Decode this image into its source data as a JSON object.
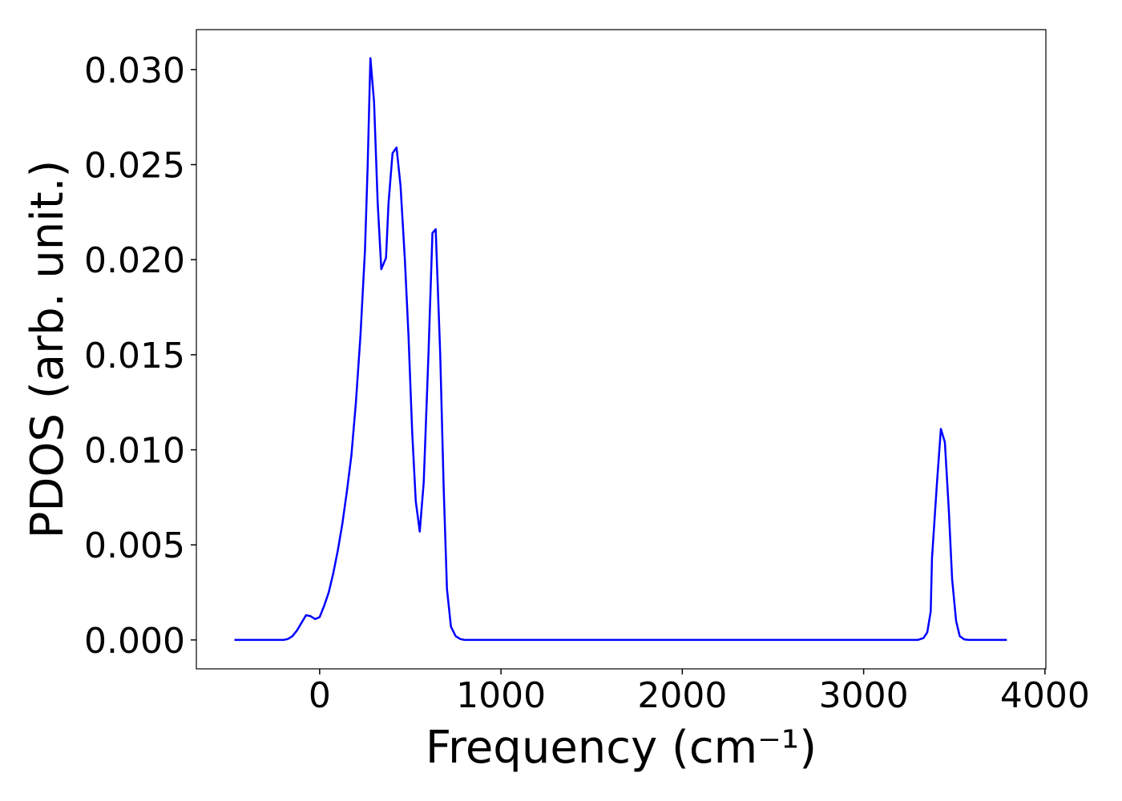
{
  "chart_data": {
    "type": "line",
    "xlabel": "Frequency (cm⁻¹)",
    "ylabel": "PDOS (arb. unit.)",
    "xlim": [
      -680,
      4005
    ],
    "ylim": [
      -0.00152,
      0.0321
    ],
    "xticks": [
      0,
      1000,
      2000,
      3000,
      4000
    ],
    "yticks": [
      {
        "value": 0,
        "label": "0.000"
      },
      {
        "value": 0.005,
        "label": "0.005"
      },
      {
        "value": 0.01,
        "label": "0.010"
      },
      {
        "value": 0.015,
        "label": "0.015"
      },
      {
        "value": 0.02,
        "label": "0.020"
      },
      {
        "value": 0.025,
        "label": "0.025"
      },
      {
        "value": 0.03,
        "label": "0.030"
      }
    ],
    "series": [
      {
        "color": "#0000ff",
        "x": [
          -470,
          -200,
          -175,
          -150,
          -125,
          -100,
          -75,
          -50,
          -25,
          0,
          25,
          50,
          75,
          100,
          125,
          150,
          175,
          200,
          225,
          250,
          265,
          275,
          280,
          300,
          320,
          340,
          366,
          380,
          402,
          424,
          446,
          470,
          490,
          510,
          530,
          552,
          574,
          600,
          622,
          640,
          665,
          684,
          702,
          724,
          750,
          775,
          800,
          3298,
          3330,
          3351,
          3370,
          3377,
          3404,
          3426,
          3448,
          3470,
          3488,
          3510,
          3530,
          3555,
          3580,
          3790
        ],
        "values": [
          0,
          0,
          5e-05,
          0.0002,
          0.0005,
          0.0009,
          0.0013,
          0.00125,
          0.0011,
          0.0012,
          0.0018,
          0.0025,
          0.0035,
          0.0047,
          0.0061,
          0.0078,
          0.0097,
          0.0125,
          0.016,
          0.0205,
          0.025,
          0.0288,
          0.0306,
          0.0283,
          0.023,
          0.0195,
          0.0201,
          0.023,
          0.0256,
          0.0259,
          0.0239,
          0.02,
          0.016,
          0.011,
          0.0073,
          0.0057,
          0.0083,
          0.015,
          0.0214,
          0.0216,
          0.015,
          0.008,
          0.0027,
          0.0007,
          0.0002,
          5e-05,
          0,
          0,
          0.0001,
          0.0004,
          0.0015,
          0.0043,
          0.0082,
          0.0111,
          0.0104,
          0.0068,
          0.0032,
          0.001,
          0.0002,
          3e-05,
          0,
          0
        ]
      }
    ]
  }
}
